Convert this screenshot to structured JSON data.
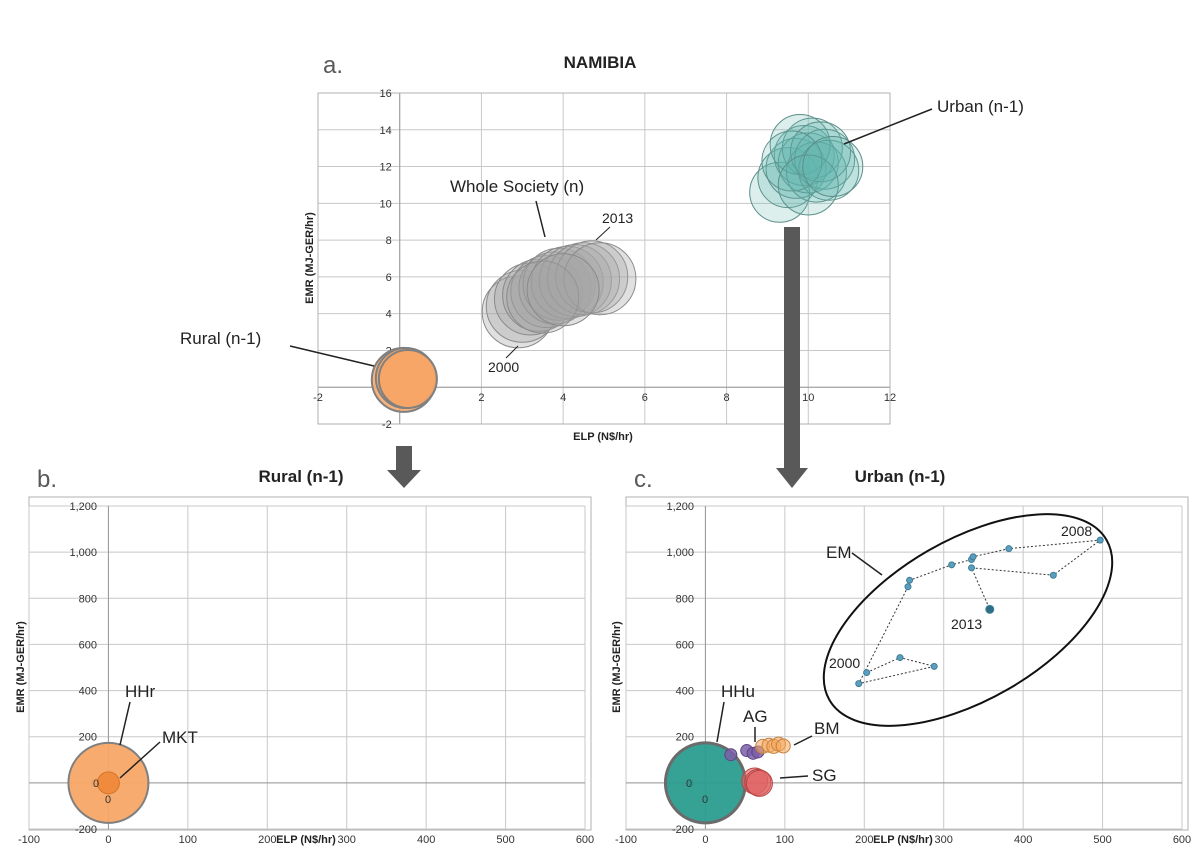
{
  "chart_data": [
    {
      "panel": "a.",
      "type": "scatter",
      "title": "NAMIBIA",
      "xlabel": "ELP (N$/hr)",
      "ylabel": "EMR (MJ-GER/hr)",
      "xlim": [
        -2,
        12
      ],
      "ylim": [
        -2,
        16
      ],
      "xticks": [
        -2,
        0,
        2,
        4,
        6,
        8,
        10,
        12
      ],
      "yticks": [
        -2,
        0,
        2,
        4,
        6,
        8,
        10,
        12,
        14,
        16
      ],
      "grid": true,
      "series": [
        {
          "name": "Rural (n-1)",
          "color": "#f7a666",
          "points": [
            {
              "x": 0.1,
              "y": 0.4
            },
            {
              "x": 0.15,
              "y": 0.5
            },
            {
              "x": 0.2,
              "y": 0.45
            }
          ]
        },
        {
          "name": "Whole Society (n)",
          "color": "#a6a6a6",
          "points": [
            {
              "x": 2.9,
              "y": 4.1
            },
            {
              "x": 3.0,
              "y": 4.4
            },
            {
              "x": 3.2,
              "y": 4.8
            },
            {
              "x": 3.4,
              "y": 5.0
            },
            {
              "x": 3.6,
              "y": 5.2
            },
            {
              "x": 3.8,
              "y": 5.4
            },
            {
              "x": 3.9,
              "y": 5.6
            },
            {
              "x": 4.1,
              "y": 5.7
            },
            {
              "x": 4.3,
              "y": 5.8
            },
            {
              "x": 4.5,
              "y": 5.9
            },
            {
              "x": 4.7,
              "y": 6.0
            },
            {
              "x": 4.9,
              "y": 5.9
            },
            {
              "x": 3.5,
              "y": 4.9
            },
            {
              "x": 4.0,
              "y": 5.3
            }
          ]
        },
        {
          "name": "Urban (n-1)",
          "color": "#5fb8ad",
          "points": [
            {
              "x": 9.3,
              "y": 10.6
            },
            {
              "x": 9.5,
              "y": 11.4
            },
            {
              "x": 9.7,
              "y": 11.9
            },
            {
              "x": 9.9,
              "y": 12.6
            },
            {
              "x": 10.0,
              "y": 12.2
            },
            {
              "x": 10.1,
              "y": 13.0
            },
            {
              "x": 10.2,
              "y": 11.7
            },
            {
              "x": 9.8,
              "y": 13.2
            },
            {
              "x": 10.4,
              "y": 12.4
            },
            {
              "x": 10.5,
              "y": 11.8
            },
            {
              "x": 10.3,
              "y": 12.8
            },
            {
              "x": 9.6,
              "y": 12.3
            },
            {
              "x": 10.0,
              "y": 11.0
            },
            {
              "x": 10.6,
              "y": 12.0
            }
          ]
        }
      ],
      "annotations": [
        "Whole Society (n)",
        "2013",
        "2000",
        "Urban (n-1)",
        "Rural (n-1)"
      ]
    },
    {
      "panel": "b.",
      "type": "scatter",
      "title": "Rural (n-1)",
      "xlabel": "ELP (N$/hr)",
      "ylabel": "EMR (MJ-GER/hr)",
      "xlim": [
        -100,
        600
      ],
      "ylim": [
        -200,
        1200
      ],
      "xticks": [
        "-100",
        "0",
        "100",
        "200",
        "300",
        "400",
        "500",
        "600"
      ],
      "yticks": [
        "-200",
        "0",
        "200",
        "400",
        "600",
        "800",
        "1,000",
        "1,200"
      ],
      "grid": true,
      "series": [
        {
          "name": "HHr",
          "color": "#f7a666",
          "points": [
            {
              "x": 0,
              "y": 0
            }
          ]
        },
        {
          "name": "MKT",
          "color": "#f08a3c",
          "points": [
            {
              "x": 0,
              "y": 0
            }
          ]
        }
      ],
      "data_labels": [
        "0",
        "0"
      ],
      "annotations": [
        "HHr",
        "MKT"
      ]
    },
    {
      "panel": "c.",
      "type": "scatter",
      "title": "Urban (n-1)",
      "xlabel": "ELP (N$/hr)",
      "ylabel": "EMR (MJ-GER/hr)",
      "xlim": [
        -100,
        600
      ],
      "ylim": [
        -200,
        1200
      ],
      "xticks": [
        "-100",
        "0",
        "100",
        "200",
        "300",
        "400",
        "500",
        "600"
      ],
      "yticks": [
        "-200",
        "0",
        "200",
        "400",
        "600",
        "800",
        "1,000",
        "1,200"
      ],
      "grid": true,
      "series": [
        {
          "name": "EM",
          "color": "#5b9fbf",
          "points": [
            {
              "x": 203,
              "y": 478
            },
            {
              "x": 245,
              "y": 543
            },
            {
              "x": 288,
              "y": 505
            },
            {
              "x": 193,
              "y": 430
            },
            {
              "x": 255,
              "y": 850
            },
            {
              "x": 257,
              "y": 878
            },
            {
              "x": 310,
              "y": 945
            },
            {
              "x": 335,
              "y": 968
            },
            {
              "x": 337,
              "y": 980
            },
            {
              "x": 382,
              "y": 1015
            },
            {
              "x": 497,
              "y": 1052
            },
            {
              "x": 438,
              "y": 900
            },
            {
              "x": 335,
              "y": 932
            },
            {
              "x": 358,
              "y": 752
            }
          ]
        },
        {
          "name": "HHu",
          "color": "#2a9d8f",
          "points": [
            {
              "x": 0,
              "y": 0
            }
          ]
        },
        {
          "name": "AG",
          "color": "#7b5ea7",
          "points": [
            {
              "x": 32,
              "y": 122
            },
            {
              "x": 52,
              "y": 140
            },
            {
              "x": 60,
              "y": 128
            },
            {
              "x": 66,
              "y": 134
            }
          ]
        },
        {
          "name": "BM",
          "color": "#f5a55a",
          "points": [
            {
              "x": 72,
              "y": 158
            },
            {
              "x": 80,
              "y": 163
            },
            {
              "x": 86,
              "y": 158
            },
            {
              "x": 92,
              "y": 168
            },
            {
              "x": 98,
              "y": 160
            }
          ]
        },
        {
          "name": "SG",
          "color": "#e06060",
          "points": [
            {
              "x": 62,
              "y": 8
            },
            {
              "x": 66,
              "y": 2
            },
            {
              "x": 68,
              "y": -2
            }
          ]
        }
      ],
      "data_labels": [
        "0",
        "0"
      ],
      "annotations": [
        "EM",
        "2008",
        "2013",
        "2000",
        "HHu",
        "AG",
        "BM",
        "SG"
      ]
    }
  ],
  "labels": {
    "a": {
      "letter": "a.",
      "title": "NAMIBIA",
      "xlabel": "ELP (N$/hr)",
      "ylabel": "EMR (MJ-GER/hr)",
      "whole": "Whole Society (n)",
      "y2013": "2013",
      "y2000": "2000",
      "urban": "Urban (n-1)",
      "rural": "Rural (n-1)"
    },
    "b": {
      "letter": "b.",
      "title": "Rural (n-1)",
      "xlabel": "ELP (N$/hr)",
      "ylabel": "EMR (MJ-GER/hr)",
      "hhr": "HHr",
      "mkt": "MKT",
      "zero_a": "0",
      "zero_b": "0"
    },
    "c": {
      "letter": "c.",
      "title": "Urban (n-1)",
      "xlabel": "ELP (N$/hr)",
      "ylabel": "EMR (MJ-GER/hr)",
      "em": "EM",
      "y2008": "2008",
      "y2013": "2013",
      "y2000": "2000",
      "hhu": "HHu",
      "ag": "AG",
      "bm": "BM",
      "sg": "SG",
      "zero_a": "0",
      "zero_b": "0"
    }
  },
  "colors": {
    "arrow": "#595959",
    "rural": "#f7a666",
    "urban": "#5fb8ad",
    "whole": "#a6a6a6"
  }
}
